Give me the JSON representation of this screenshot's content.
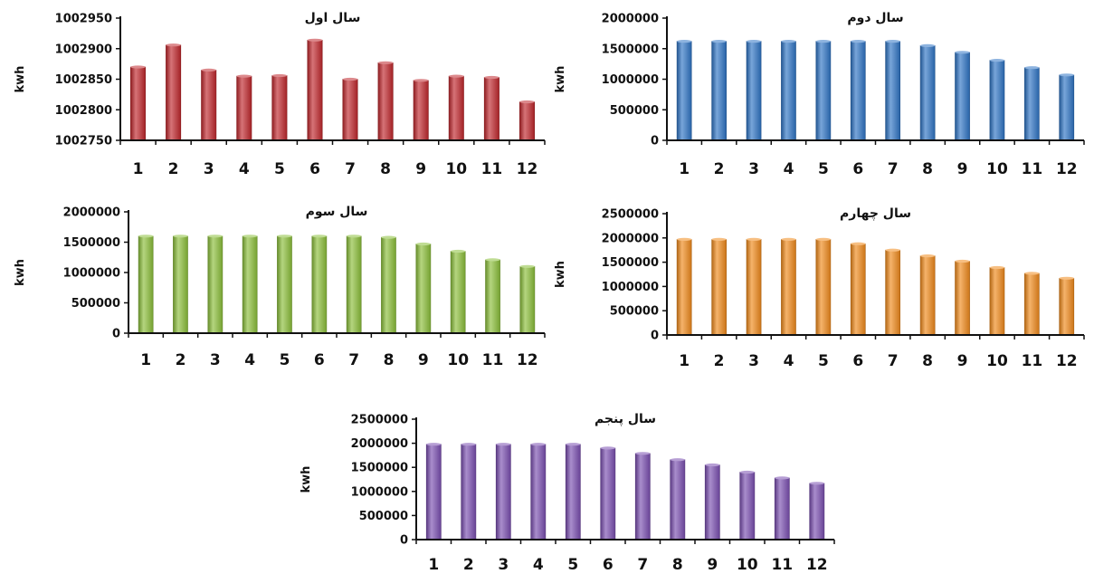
{
  "chart_data": [
    {
      "type": "bar",
      "title": "سال اول",
      "ylabel": "kwh",
      "xlabel": "",
      "categories": [
        "1",
        "2",
        "3",
        "4",
        "5",
        "6",
        "7",
        "8",
        "9",
        "10",
        "11",
        "12"
      ],
      "values": [
        1002870,
        1002906,
        1002865,
        1002855,
        1002856,
        1002914,
        1002850,
        1002877,
        1002848,
        1002855,
        1002853,
        1002813
      ],
      "ylim": [
        1002750,
        1002950
      ],
      "yticks": [
        1002750,
        1002800,
        1002850,
        1002900,
        1002950
      ],
      "ytick_labels": [
        "1002750",
        "1002800",
        "1002850",
        "1002900",
        "1002950"
      ],
      "color": "#c0282d",
      "grid": false
    },
    {
      "type": "bar",
      "title": "سال دوم",
      "ylabel": "kwh",
      "xlabel": "",
      "categories": [
        "1",
        "2",
        "3",
        "4",
        "5",
        "6",
        "7",
        "8",
        "9",
        "10",
        "11",
        "12"
      ],
      "values": [
        1620000,
        1620000,
        1620000,
        1620000,
        1620000,
        1620000,
        1620000,
        1550000,
        1440000,
        1310000,
        1190000,
        1070000
      ],
      "ylim": [
        0,
        2000000
      ],
      "yticks": [
        0,
        500000,
        1000000,
        1500000,
        2000000
      ],
      "ytick_labels": [
        "0",
        "500000",
        "1000000",
        "1500000",
        "2000000"
      ],
      "color": "#2f74c4",
      "grid": false
    },
    {
      "type": "bar",
      "title": "سال سوم",
      "ylabel": "kwh",
      "xlabel": "",
      "categories": [
        "1",
        "2",
        "3",
        "4",
        "5",
        "6",
        "7",
        "8",
        "9",
        "10",
        "11",
        "12"
      ],
      "values": [
        1600000,
        1600000,
        1600000,
        1600000,
        1600000,
        1600000,
        1600000,
        1580000,
        1470000,
        1350000,
        1210000,
        1100000
      ],
      "ylim": [
        0,
        2000000
      ],
      "yticks": [
        0,
        500000,
        1000000,
        1500000,
        2000000
      ],
      "ytick_labels": [
        "0",
        "500000",
        "1000000",
        "1500000",
        "2000000"
      ],
      "color": "#8bbf3a",
      "grid": false
    },
    {
      "type": "bar",
      "title": "سال چهارم",
      "ylabel": "kwh",
      "xlabel": "",
      "categories": [
        "1",
        "2",
        "3",
        "4",
        "5",
        "6",
        "7",
        "8",
        "9",
        "10",
        "11",
        "12"
      ],
      "values": [
        1970000,
        1970000,
        1970000,
        1970000,
        1970000,
        1880000,
        1750000,
        1630000,
        1520000,
        1390000,
        1270000,
        1170000
      ],
      "ylim": [
        0,
        2500000
      ],
      "yticks": [
        0,
        500000,
        1000000,
        1500000,
        2000000,
        2500000
      ],
      "ytick_labels": [
        "0",
        "500000",
        "1000000",
        "1500000",
        "2000000",
        "2500000"
      ],
      "color": "#f08a1c",
      "grid": false
    },
    {
      "type": "bar",
      "title": "سال پنجم",
      "ylabel": "kwh",
      "xlabel": "",
      "categories": [
        "1",
        "2",
        "3",
        "4",
        "5",
        "6",
        "7",
        "8",
        "9",
        "10",
        "11",
        "12"
      ],
      "values": [
        1980000,
        1980000,
        1980000,
        1980000,
        1980000,
        1900000,
        1790000,
        1660000,
        1550000,
        1400000,
        1280000,
        1170000
      ],
      "ylim": [
        0,
        2500000
      ],
      "yticks": [
        0,
        500000,
        1000000,
        1500000,
        2000000,
        2500000
      ],
      "ytick_labels": [
        "0",
        "500000",
        "1000000",
        "1500000",
        "2000000",
        "2500000"
      ],
      "color": "#7a4fb0",
      "grid": false
    }
  ]
}
